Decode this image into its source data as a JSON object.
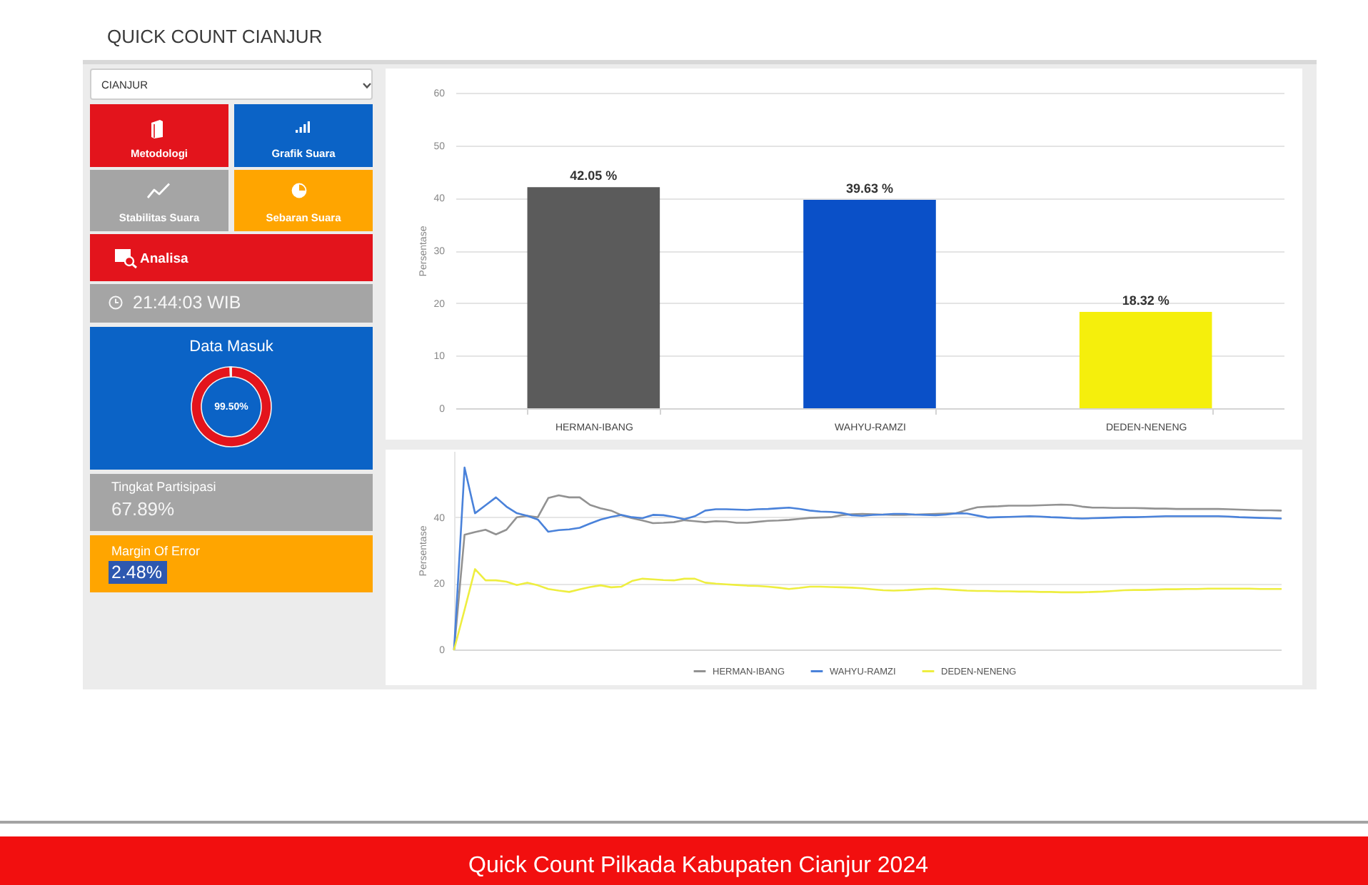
{
  "chart_data": [
    {
      "type": "other",
      "title": "QUICK COUNT CIANJUR",
      "annotations": [
        "CIANJUR",
        "Metodologi",
        "Grafik Suara",
        "Stabilitas Suara",
        "Sebaran Suara",
        "Analisa",
        "21:44:03 WIB",
        "Tingkat Partisipasi",
        "67.89%",
        "Margin Of Error",
        "2.48%",
        "Quick Count Pilkada Kabupaten Cianjur 2024"
      ]
    },
    {
      "type": "donut",
      "title": "Data Masuk",
      "categories": [
        null,
        null
      ],
      "values": [
        99.5,
        0.5
      ],
      "colors": [
        "#e3141c",
        "#ffffff"
      ],
      "annotations": [
        "99.50%"
      ]
    },
    {
      "type": "bar",
      "categories": [
        "HERMAN-IBANG",
        "WAHYU-RAMZI",
        "DEDEN-NENENG"
      ],
      "values": [
        42.05,
        39.63,
        18.32
      ],
      "colors": [
        "#5b5b5b",
        "#0a50c8",
        "#f5ef0c"
      ],
      "value_labels": [
        "42.05 %",
        "39.63 %",
        "18.32 %"
      ],
      "ylabel": "Persentase",
      "ylim": [
        0,
        60
      ],
      "yticks": [
        0,
        10,
        20,
        30,
        40,
        50,
        60
      ],
      "grid": "y"
    },
    {
      "type": "line",
      "categories": [
        null,
        null,
        null,
        null,
        null,
        null,
        null,
        null,
        null,
        null,
        null,
        null,
        null,
        null,
        null,
        null,
        null,
        null,
        null,
        null,
        null,
        null,
        null,
        null,
        null,
        null,
        null,
        null,
        null,
        null,
        null,
        null,
        null,
        null,
        null,
        null,
        null,
        null,
        null,
        null,
        null,
        null,
        null,
        null,
        null,
        null,
        null,
        null,
        null,
        null,
        null,
        null,
        null,
        null,
        null,
        null,
        null,
        null,
        null,
        null,
        null,
        null,
        null,
        null,
        null,
        null,
        null,
        null,
        null,
        null,
        null,
        null,
        null,
        null,
        null,
        null,
        null,
        null,
        null,
        null
      ],
      "series": [
        {
          "name": "HERMAN-IBANG",
          "color": "#929292",
          "values": [
            0,
            34.7,
            35.5,
            36.2,
            34.8,
            36.2,
            40,
            40.4,
            40,
            45.8,
            46.6,
            46,
            46,
            43.7,
            42.7,
            42,
            40.6,
            39.7,
            39,
            38.2,
            38.3,
            38.5,
            39.1,
            38.8,
            38.5,
            38.8,
            38.7,
            38.3,
            38.3,
            38.6,
            38.9,
            39,
            39.2,
            39.5,
            39.8,
            39.9,
            40,
            40.6,
            40.9,
            41,
            40.9,
            40.8,
            40.7,
            40.7,
            40.8,
            40.9,
            41,
            41.1,
            41.2,
            42.2,
            43,
            43.2,
            43.3,
            43.5,
            43.5,
            43.5,
            43.6,
            43.7,
            43.8,
            43.7,
            43.2,
            42.9,
            42.9,
            42.8,
            42.8,
            42.8,
            42.7,
            42.6,
            42.6,
            42.5,
            42.5,
            42.5,
            42.5,
            42.5,
            42.4,
            42.3,
            42.2,
            42.1,
            42.1,
            42
          ]
        },
        {
          "name": "WAHYU-RAMZI",
          "color": "#4a82da",
          "values": [
            0,
            55,
            41.2,
            43.6,
            46,
            43.2,
            41.2,
            40.4,
            39.3,
            35.6,
            36.1,
            36.3,
            36.8,
            38.1,
            39.3,
            40.1,
            40.7,
            40,
            39.7,
            40.7,
            40.6,
            40.1,
            39.4,
            40.3,
            42,
            42.4,
            42.4,
            42.3,
            42.2,
            42.4,
            42.5,
            42.7,
            42.9,
            42.5,
            42,
            41.7,
            41.6,
            41.3,
            40.6,
            40.4,
            40.7,
            40.8,
            41,
            41,
            40.8,
            40.7,
            40.6,
            40.8,
            41.2,
            41.1,
            40.5,
            39.9,
            40,
            40.1,
            40.2,
            40.3,
            40.2,
            40,
            39.9,
            39.7,
            39.6,
            39.7,
            39.8,
            39.9,
            40,
            40,
            40.1,
            40.2,
            40.3,
            40.3,
            40.3,
            40.3,
            40.3,
            40.3,
            40.2,
            40,
            39.9,
            39.8,
            39.7,
            39.6
          ]
        },
        {
          "name": "DEDEN-NENENG",
          "color": "#eeee40",
          "values": [
            0,
            12,
            24.3,
            20.9,
            20.9,
            20.5,
            19.5,
            20.2,
            19.4,
            18.3,
            17.8,
            17.4,
            18.2,
            18.9,
            19.4,
            18.8,
            19,
            20.7,
            21.4,
            21.2,
            21,
            20.9,
            21.4,
            21.4,
            20.2,
            19.9,
            19.7,
            19.5,
            19.3,
            19.2,
            19,
            18.7,
            18.3,
            18.6,
            19,
            19,
            18.9,
            18.8,
            18.7,
            18.5,
            18.2,
            17.9,
            17.8,
            17.9,
            18.1,
            18.3,
            18.4,
            18.2,
            18,
            17.8,
            17.7,
            17.7,
            17.6,
            17.6,
            17.5,
            17.5,
            17.4,
            17.4,
            17.3,
            17.3,
            17.3,
            17.4,
            17.5,
            17.7,
            17.9,
            18,
            18,
            18.1,
            18.2,
            18.2,
            18.3,
            18.3,
            18.4,
            18.4,
            18.4,
            18.4,
            18.4,
            18.3,
            18.3,
            18.3
          ]
        }
      ],
      "ylabel": "Persentase",
      "ylim": [
        0,
        60
      ],
      "yticks": [
        0,
        20,
        40
      ],
      "grid": "y",
      "legend": "bottom"
    }
  ]
}
